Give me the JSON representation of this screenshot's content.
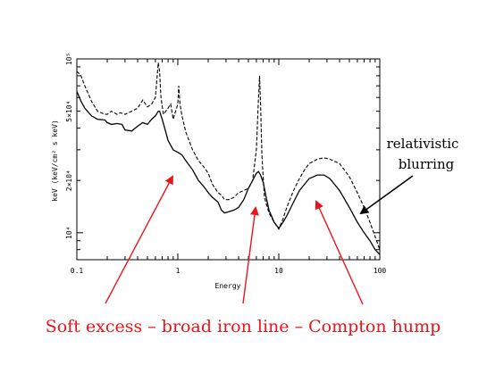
{
  "chart_data": {
    "type": "line",
    "title": "",
    "xlabel": "Energy",
    "ylabel": "keV (keV/cm² s keV)",
    "xscale": "log",
    "yscale": "log",
    "xlim": [
      0.1,
      100
    ],
    "ylim": [
      7000,
      100000
    ],
    "grid": false,
    "legend": "none",
    "x_ticks": [
      {
        "value": 0.1,
        "label": "0.1"
      },
      {
        "value": 1,
        "label": "1"
      },
      {
        "value": 10,
        "label": "10"
      },
      {
        "value": 100,
        "label": "100"
      }
    ],
    "y_ticks": [
      {
        "value": 10000,
        "label": "10⁴"
      },
      {
        "value": 20000,
        "label": "2×10⁴"
      },
      {
        "value": 50000,
        "label": "5×10⁴"
      },
      {
        "value": 100000,
        "label": "10⁵"
      }
    ],
    "series": [
      {
        "style": "solid",
        "x": [
          0.1,
          0.11,
          0.12,
          0.14,
          0.16,
          0.19,
          0.2,
          0.22,
          0.25,
          0.28,
          0.3,
          0.35,
          0.4,
          0.45,
          0.5,
          0.55,
          0.6,
          0.64,
          0.66,
          0.7,
          0.75,
          0.8,
          0.9,
          1.0,
          1.05,
          1.1,
          1.2,
          1.4,
          1.6,
          1.8,
          2.0,
          2.2,
          2.5,
          2.7,
          2.9,
          3.2,
          3.6,
          4.0,
          4.5,
          5.0,
          5.5,
          6.0,
          6.3,
          6.6,
          7.0,
          7.5,
          8.0,
          9.0,
          10.0,
          11,
          12,
          14,
          16,
          18,
          20,
          24,
          28,
          32,
          40,
          50,
          60,
          70,
          80,
          90,
          100
        ],
        "y": [
          65000,
          57000,
          52000,
          47000,
          45000,
          44500,
          43000,
          42000,
          42500,
          42000,
          39000,
          38500,
          41000,
          43000,
          42000,
          45000,
          47000,
          50000,
          50000,
          45000,
          39000,
          34000,
          30000,
          29000,
          28500,
          28000,
          26000,
          23000,
          20000,
          18500,
          17000,
          16000,
          15000,
          13500,
          13000,
          13200,
          13500,
          14000,
          15500,
          18000,
          20000,
          22000,
          22500,
          21500,
          19500,
          16000,
          13500,
          11500,
          10600,
          11500,
          12500,
          15000,
          17500,
          19000,
          20500,
          21500,
          21500,
          20500,
          17500,
          14000,
          11500,
          10000,
          9000,
          8000,
          7500
        ]
      },
      {
        "style": "dashed",
        "x": [
          0.1,
          0.11,
          0.12,
          0.14,
          0.16,
          0.19,
          0.2,
          0.22,
          0.25,
          0.27,
          0.3,
          0.35,
          0.4,
          0.45,
          0.5,
          0.55,
          0.6,
          0.64,
          0.66,
          0.68,
          0.72,
          0.8,
          0.85,
          0.9,
          1.0,
          1.02,
          1.05,
          1.1,
          1.2,
          1.4,
          1.6,
          1.8,
          2.0,
          2.2,
          2.5,
          2.7,
          2.9,
          3.2,
          3.6,
          4.0,
          4.5,
          5.0,
          5.5,
          6.0,
          6.3,
          6.45,
          6.6,
          6.8,
          7.2,
          8.0,
          9.0,
          10.0,
          11,
          12,
          14,
          16,
          18,
          20,
          24,
          28,
          32,
          40,
          50,
          60,
          70,
          80,
          90,
          100
        ],
        "y": [
          85000,
          80000,
          70000,
          57000,
          50000,
          48000,
          48000,
          50000,
          48000,
          49000,
          48000,
          50000,
          52000,
          58000,
          53000,
          55000,
          60000,
          95000,
          85000,
          60000,
          48000,
          52000,
          55000,
          45000,
          55000,
          70000,
          55000,
          47000,
          38000,
          30000,
          26000,
          24000,
          22000,
          19000,
          17000,
          16500,
          15500,
          15500,
          16000,
          17000,
          17500,
          18000,
          20000,
          30000,
          60000,
          80000,
          55000,
          28000,
          16000,
          13000,
          11500,
          10500,
          12000,
          14000,
          17500,
          20500,
          23000,
          25000,
          26500,
          27000,
          26500,
          25000,
          21000,
          17000,
          14000,
          11500,
          9500,
          8000
        ]
      }
    ],
    "annotations": [
      {
        "text_lines": [
          "relativistic",
          "blurring"
        ]
      },
      {
        "text": "Soft excess – broad iron line – Compton hump"
      }
    ]
  }
}
